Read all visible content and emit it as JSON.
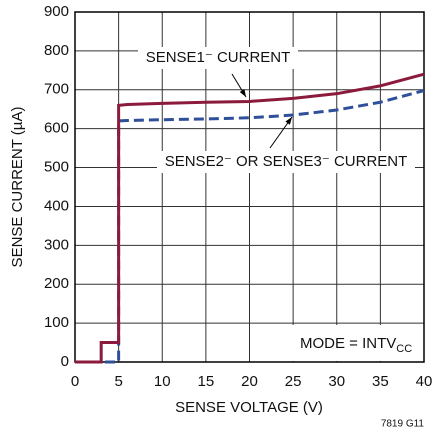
{
  "chart_data": {
    "type": "line",
    "xlabel": "SENSE VOLTAGE (V)",
    "ylabel": "SENSE CURRENT (µA)",
    "xlim": [
      0,
      40
    ],
    "ylim": [
      0,
      900
    ],
    "xticks": [
      0,
      5,
      10,
      15,
      20,
      25,
      30,
      35,
      40
    ],
    "yticks": [
      0,
      100,
      200,
      300,
      400,
      500,
      600,
      700,
      800,
      900
    ],
    "grid": true,
    "series": [
      {
        "name": "SENSE1⁻ CURRENT",
        "color": "#8b1a3c",
        "dash": false,
        "x": [
          0,
          3,
          3,
          5,
          5,
          6,
          10,
          15,
          20,
          25,
          30,
          35,
          40
        ],
        "values": [
          0,
          0,
          50,
          50,
          660,
          662,
          665,
          668,
          670,
          678,
          690,
          710,
          740
        ]
      },
      {
        "name": "SENSE2⁻ OR SENSE3⁻ CURRENT",
        "color": "#2e4f9a",
        "dash": true,
        "x": [
          0,
          5,
          5,
          5,
          6,
          10,
          15,
          20,
          25,
          30,
          35,
          40
        ],
        "values": [
          0,
          0,
          40,
          620,
          621,
          623,
          625,
          628,
          635,
          648,
          668,
          698
        ]
      }
    ],
    "annotation": {
      "text": "MODE = INTV",
      "subscript": "CC"
    },
    "footnote": "7819 G11"
  }
}
